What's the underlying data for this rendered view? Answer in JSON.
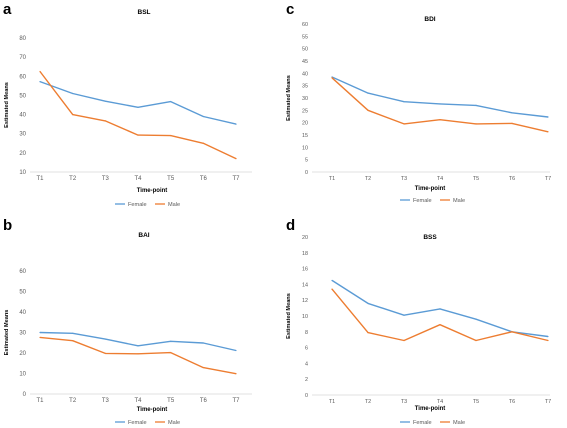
{
  "panel_letters": [
    "a",
    "c",
    "b",
    "d"
  ],
  "colors": {
    "female": "#5B9BD5",
    "male": "#ED7D31",
    "axis": "#D9D9D9",
    "text": "#595959"
  },
  "chart_data": [
    {
      "type": "line",
      "panel": "a",
      "title": "BSL",
      "xlabel": "Time-point",
      "ylabel": "Estimated Means",
      "categories": [
        "T1",
        "T2",
        "T3",
        "T4",
        "T5",
        "T6",
        "T7"
      ],
      "ylim": [
        10,
        80
      ],
      "yticks": [
        "10",
        "20",
        "30",
        "40",
        "50",
        "60",
        "70",
        "80"
      ],
      "series": [
        {
          "name": "Female",
          "values": [
            57.2,
            51,
            47,
            43.8,
            46.8,
            39,
            35
          ]
        },
        {
          "name": "Male",
          "values": [
            62.5,
            40,
            36.7,
            29.3,
            29,
            25,
            17
          ]
        }
      ],
      "grid": false,
      "legend": "bottom"
    },
    {
      "type": "line",
      "panel": "c",
      "title": "BDI",
      "xlabel": "Time-point",
      "ylabel": "Estimated Means",
      "categories": [
        "T1",
        "T2",
        "T3",
        "T4",
        "T5",
        "T6",
        "T7"
      ],
      "ylim": [
        0,
        60
      ],
      "yticks": [
        "0",
        "5",
        "10",
        "15",
        "20",
        "25",
        "30",
        "35",
        "40",
        "45",
        "50",
        "55",
        "60"
      ],
      "series": [
        {
          "name": "Female",
          "values": [
            38.5,
            32,
            28.5,
            27.6,
            27,
            24,
            22.3
          ]
        },
        {
          "name": "Male",
          "values": [
            38.2,
            25,
            19.5,
            21.2,
            19.5,
            19.7,
            16.3
          ]
        }
      ],
      "grid": false,
      "legend": "bottom"
    },
    {
      "type": "line",
      "panel": "b",
      "title": "BAI",
      "xlabel": "Time-point",
      "ylabel": "Estimated Means",
      "categories": [
        "T1",
        "T2",
        "T3",
        "T4",
        "T5",
        "T6",
        "T7"
      ],
      "ylim": [
        0,
        60
      ],
      "yticks": [
        "0",
        "10",
        "20",
        "30",
        "40",
        "50",
        "60"
      ],
      "series": [
        {
          "name": "Female",
          "values": [
            30,
            29.6,
            26.8,
            23.5,
            25.7,
            24.9,
            21.2
          ]
        },
        {
          "name": "Male",
          "values": [
            27.6,
            26,
            19.8,
            19.6,
            20.2,
            12.9,
            9.9
          ]
        }
      ],
      "grid": false,
      "legend": "bottom"
    },
    {
      "type": "line",
      "panel": "d",
      "title": "BSS",
      "xlabel": "Time-point",
      "ylabel": "Estimated Means",
      "categories": [
        "T1",
        "T2",
        "T3",
        "T4",
        "T5",
        "T6",
        "T7"
      ],
      "ylim": [
        0,
        20
      ],
      "yticks": [
        "0",
        "2",
        "4",
        "6",
        "8",
        "10",
        "12",
        "14",
        "16",
        "18",
        "20"
      ],
      "series": [
        {
          "name": "Female",
          "values": [
            14.5,
            11.6,
            10.1,
            10.9,
            9.6,
            8.0,
            7.4
          ]
        },
        {
          "name": "Male",
          "values": [
            13.4,
            7.9,
            6.9,
            8.9,
            6.9,
            8.0,
            6.9
          ]
        }
      ],
      "grid": false,
      "legend": "bottom"
    }
  ]
}
